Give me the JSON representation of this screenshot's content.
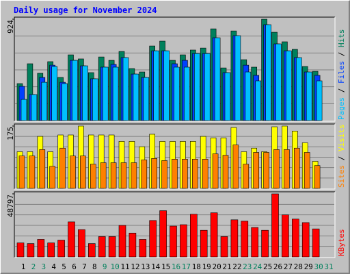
{
  "title": "Daily usage for November 2024",
  "categories": [
    "1",
    "2",
    "3",
    "4",
    "5",
    "6",
    "7",
    "8",
    "9",
    "10",
    "11",
    "12",
    "13",
    "14",
    "15",
    "16",
    "17",
    "18",
    "19",
    "20",
    "21",
    "22",
    "23",
    "24",
    "25",
    "26",
    "27",
    "28",
    "29",
    "30",
    "31"
  ],
  "label_colors": [
    "#000000",
    "#00805c",
    "#00805c",
    "#000000",
    "#000000",
    "#000000",
    "#000000",
    "#000000",
    "#00805c",
    "#00805c",
    "#000000",
    "#000000",
    "#000000",
    "#000000",
    "#000000",
    "#00805c",
    "#00805c",
    "#000000",
    "#000000",
    "#000000",
    "#000000",
    "#000000",
    "#00805c",
    "#00805c",
    "#000000",
    "#000000",
    "#000000",
    "#000000",
    "#000000",
    "#00805c",
    "#00805c"
  ],
  "chart_data": [
    {
      "type": "bar",
      "ylim": [
        0,
        924
      ],
      "yticks": [
        924
      ],
      "series": [
        {
          "name": "Hits",
          "color": "#00805c",
          "values": [
            337,
            518,
            431,
            537,
            393,
            599,
            562,
            437,
            580,
            549,
            630,
            474,
            443,
            680,
            724,
            549,
            599,
            643,
            661,
            836,
            480,
            817,
            555,
            487,
            924,
            805,
            718,
            649,
            493,
            449,
            null
          ]
        },
        {
          "name": "Files",
          "color": "#0040ff",
          "values": [
            312,
            237,
            393,
            505,
            349,
            549,
            499,
            381,
            487,
            512,
            574,
            424,
            393,
            636,
            636,
            518,
            549,
            611,
            611,
            755,
            437,
            774,
            505,
            412,
            874,
            699,
            636,
            574,
            443,
            412,
            null
          ]
        },
        {
          "name": "Pages",
          "color": "#00c0ff",
          "values": [
            193,
            237,
            349,
            493,
            337,
            549,
            499,
            381,
            487,
            487,
            574,
            424,
            393,
            636,
            636,
            487,
            487,
            611,
            611,
            755,
            437,
            774,
            443,
            362,
            874,
            699,
            636,
            574,
            443,
            362,
            null
          ]
        }
      ]
    },
    {
      "type": "bar",
      "ylim": [
        0,
        175
      ],
      "yticks": [
        175
      ],
      "series": [
        {
          "name": "Visits",
          "color": "#ffff00",
          "values": [
            103,
            103,
            146,
            103,
            150,
            150,
            175,
            150,
            150,
            150,
            132,
            132,
            117,
            152,
            132,
            132,
            132,
            132,
            146,
            142,
            142,
            171,
            103,
            113,
            103,
            173,
            175,
            161,
            128,
            76,
            null
          ]
        },
        {
          "name": "Sites",
          "color": "#ff8000",
          "values": [
            91,
            91,
            109,
            62,
            113,
            91,
            91,
            68,
            72,
            72,
            72,
            72,
            80,
            84,
            78,
            82,
            82,
            82,
            82,
            97,
            93,
            122,
            68,
            101,
            101,
            109,
            109,
            113,
            101,
            64,
            null
          ]
        }
      ]
    },
    {
      "type": "bar",
      "ylim": [
        0,
        48797
      ],
      "yticks": [
        48797
      ],
      "series": [
        {
          "name": "KBytes",
          "color": "#ff0000",
          "values": [
            10843,
            10300,
            13550,
            10843,
            13000,
            27100,
            21140,
            10300,
            15720,
            15720,
            24390,
            18430,
            13550,
            28180,
            35770,
            23850,
            24930,
            33060,
            20600,
            34150,
            15720,
            28720,
            27640,
            22760,
            20600,
            48797,
            32520,
            29270,
            26560,
            21680,
            null
          ]
        }
      ]
    }
  ]
}
